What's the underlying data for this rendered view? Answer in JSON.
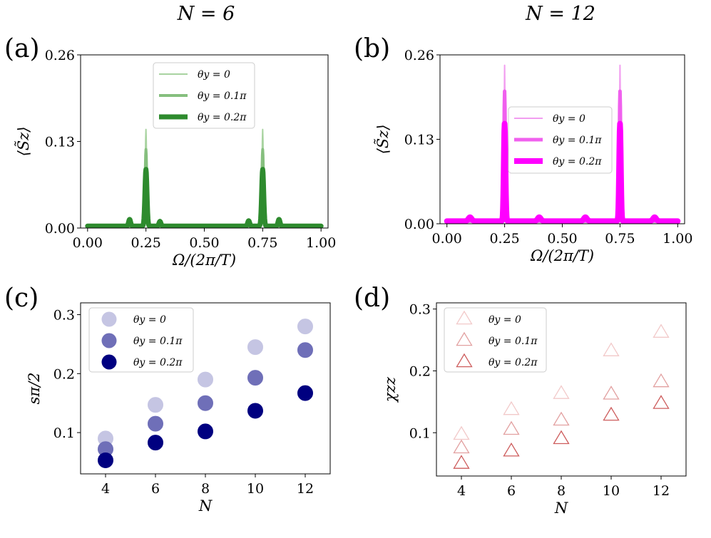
{
  "column_titles": [
    "N = 6",
    "N = 12"
  ],
  "colors": {
    "green_light": "#a8d3a0",
    "green_mid": "#86bf7e",
    "green_dark": "#2e8b2e",
    "mag_light": "#f29ef0",
    "mag_mid": "#f060ee",
    "mag_dark": "#ff00ff",
    "navy_light": "#c5c5e3",
    "navy_mid": "#6f6fb8",
    "navy_dark": "#000080",
    "red_light": "#f2c9c9",
    "red_mid": "#e2a0a0",
    "red_dark": "#cd5c5c"
  },
  "chart_data": [
    {
      "id": "a",
      "panel_label": "(a)",
      "type": "line",
      "xlabel": "Ω/(2π/T)",
      "ylabel": "⟨S̃z⟩",
      "xlim": [
        -0.03,
        1.03
      ],
      "ylim": [
        0,
        0.26
      ],
      "xticks": [
        "0.00",
        "0.25",
        "0.50",
        "0.75",
        "1.00"
      ],
      "yticks": [
        "0.00",
        "0.13",
        "0.26"
      ],
      "legend": "top-center",
      "series": [
        {
          "name": "θy = 0",
          "width": 2,
          "color": "#a8d3a0",
          "base": 0.003,
          "peaks": [
            [
              0.25,
              0.145,
              0.004
            ],
            [
              0.75,
              0.145,
              0.004
            ]
          ]
        },
        {
          "name": "θy = 0.1π",
          "width": 4,
          "color": "#86bf7e",
          "base": 0.003,
          "peaks": [
            [
              0.25,
              0.115,
              0.005
            ],
            [
              0.75,
              0.115,
              0.005
            ]
          ]
        },
        {
          "name": "θy = 0.2π",
          "width": 7,
          "color": "#2e8b2e",
          "base": 0.003,
          "peaks": [
            [
              0.25,
              0.085,
              0.006
            ],
            [
              0.75,
              0.085,
              0.006
            ],
            [
              0.18,
              0.01,
              0.006
            ],
            [
              0.31,
              0.007,
              0.006
            ],
            [
              0.69,
              0.008,
              0.006
            ],
            [
              0.82,
              0.01,
              0.006
            ]
          ]
        }
      ]
    },
    {
      "id": "b",
      "panel_label": "(b)",
      "type": "line",
      "xlabel": "Ω/(2π/T)",
      "ylabel": "⟨S̃z⟩",
      "xlim": [
        -0.03,
        1.03
      ],
      "ylim": [
        0,
        0.26
      ],
      "xticks": [
        "0.00",
        "0.25",
        "0.50",
        "0.75",
        "1.00"
      ],
      "yticks": [
        "0.00",
        "0.13",
        "0.26"
      ],
      "legend": "center",
      "series": [
        {
          "name": "θy = 0",
          "width": 2,
          "color": "#f29ef0",
          "base": 0.004,
          "peaks": [
            [
              0.25,
              0.24,
              0.003
            ],
            [
              0.75,
              0.24,
              0.003
            ]
          ]
        },
        {
          "name": "θy = 0.1π",
          "width": 5,
          "color": "#f060ee",
          "base": 0.004,
          "peaks": [
            [
              0.25,
              0.2,
              0.004
            ],
            [
              0.75,
              0.2,
              0.004
            ]
          ]
        },
        {
          "name": "θy = 0.2π",
          "width": 8,
          "color": "#ff00ff",
          "base": 0.004,
          "peaks": [
            [
              0.25,
              0.15,
              0.005
            ],
            [
              0.75,
              0.15,
              0.005
            ],
            [
              0.1,
              0.006,
              0.01
            ],
            [
              0.4,
              0.006,
              0.01
            ],
            [
              0.6,
              0.006,
              0.01
            ],
            [
              0.9,
              0.006,
              0.01
            ]
          ]
        }
      ]
    },
    {
      "id": "c",
      "panel_label": "(c)",
      "type": "scatter",
      "marker": "circle",
      "xlabel": "N",
      "ylabel": "sπ/2",
      "xlim": [
        3,
        13
      ],
      "ylim": [
        0.03,
        0.32
      ],
      "xticks": [
        4,
        6,
        8,
        10,
        12
      ],
      "yticks": [
        0.1,
        0.2,
        0.3
      ],
      "legend": "top-left",
      "series": [
        {
          "name": "θy = 0",
          "color": "#c5c5e3",
          "x": [
            4,
            6,
            8,
            10,
            12
          ],
          "values": [
            0.09,
            0.147,
            0.19,
            0.245,
            0.28
          ]
        },
        {
          "name": "θy = 0.1π",
          "color": "#6f6fb8",
          "x": [
            4,
            6,
            8,
            10,
            12
          ],
          "values": [
            0.072,
            0.115,
            0.15,
            0.193,
            0.24
          ]
        },
        {
          "name": "θy = 0.2π",
          "color": "#000080",
          "x": [
            4,
            6,
            8,
            10,
            12
          ],
          "values": [
            0.053,
            0.083,
            0.102,
            0.137,
            0.167
          ]
        }
      ]
    },
    {
      "id": "d",
      "panel_label": "(d)",
      "type": "scatter",
      "marker": "triangle",
      "xlabel": "N",
      "ylabel": "χzz",
      "xlim": [
        3,
        13
      ],
      "ylim": [
        0.03,
        0.31
      ],
      "xticks": [
        4,
        6,
        8,
        10,
        12
      ],
      "yticks": [
        0.1,
        0.2,
        0.3
      ],
      "legend": "top-left",
      "series": [
        {
          "name": "θy = 0",
          "color": "#f2c9c9",
          "x": [
            4,
            6,
            8,
            10,
            12
          ],
          "values": [
            0.097,
            0.137,
            0.163,
            0.232,
            0.262
          ]
        },
        {
          "name": "θy = 0.1π",
          "color": "#e2a0a0",
          "x": [
            4,
            6,
            8,
            10,
            12
          ],
          "values": [
            0.075,
            0.105,
            0.12,
            0.162,
            0.182
          ]
        },
        {
          "name": "θy = 0.2π",
          "color": "#cd5c5c",
          "x": [
            4,
            6,
            8,
            10,
            12
          ],
          "values": [
            0.05,
            0.07,
            0.09,
            0.128,
            0.147
          ]
        }
      ]
    }
  ]
}
